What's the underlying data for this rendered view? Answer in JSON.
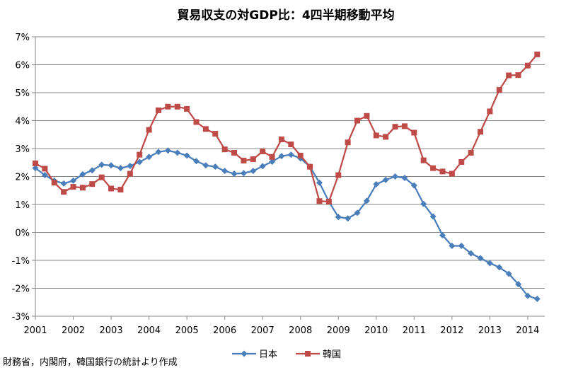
{
  "chart_data": {
    "type": "line",
    "title": "貿易収支の対GDP比：4四半期移動平均",
    "source": "財務省，内閣府，韓国銀行の統計より作成",
    "xlabel": "",
    "ylabel": "",
    "xlim": [
      2001,
      2014.45
    ],
    "ylim": [
      -3,
      7
    ],
    "xticks": [
      "2001",
      "2002",
      "2003",
      "2004",
      "2005",
      "2006",
      "2007",
      "2008",
      "2009",
      "2010",
      "2011",
      "2012",
      "2013",
      "2014"
    ],
    "yticks": [
      "7%",
      "6%",
      "5%",
      "4%",
      "3%",
      "2%",
      "1%",
      "0%",
      "-1%",
      "-2%",
      "-3%"
    ],
    "grid": true,
    "legend": "bottom",
    "series": [
      {
        "name": "日本",
        "color": "#4a7ebb",
        "marker": "diamond",
        "start": 2001.0,
        "step": 0.25,
        "values": [
          2.3,
          2.05,
          1.85,
          1.75,
          1.85,
          2.08,
          2.22,
          2.42,
          2.4,
          2.3,
          2.38,
          2.52,
          2.7,
          2.88,
          2.93,
          2.85,
          2.75,
          2.55,
          2.4,
          2.35,
          2.2,
          2.1,
          2.12,
          2.2,
          2.37,
          2.53,
          2.73,
          2.78,
          2.65,
          2.35,
          1.78,
          1.1,
          0.55,
          0.5,
          0.7,
          1.13,
          1.72,
          1.88,
          2.0,
          1.95,
          1.68,
          1.02,
          0.57,
          -0.1,
          -0.48,
          -0.48,
          -0.75,
          -0.92,
          -1.1,
          -1.25,
          -1.48,
          -1.85,
          -2.27,
          -2.38
        ]
      },
      {
        "name": "韓国",
        "color": "#be4b48",
        "marker": "square",
        "start": 2001.0,
        "step": 0.25,
        "values": [
          2.47,
          2.28,
          1.78,
          1.45,
          1.63,
          1.6,
          1.73,
          1.97,
          1.57,
          1.53,
          2.1,
          2.78,
          3.67,
          4.37,
          4.5,
          4.5,
          4.42,
          3.95,
          3.7,
          3.53,
          2.97,
          2.85,
          2.57,
          2.62,
          2.9,
          2.7,
          3.33,
          3.15,
          2.75,
          2.35,
          1.12,
          1.1,
          2.05,
          3.22,
          4.0,
          4.17,
          3.47,
          3.42,
          3.78,
          3.8,
          3.57,
          2.58,
          2.3,
          2.18,
          2.1,
          2.52,
          2.85,
          3.6,
          4.33,
          5.1,
          5.62,
          5.63,
          5.97,
          6.37
        ]
      }
    ]
  }
}
